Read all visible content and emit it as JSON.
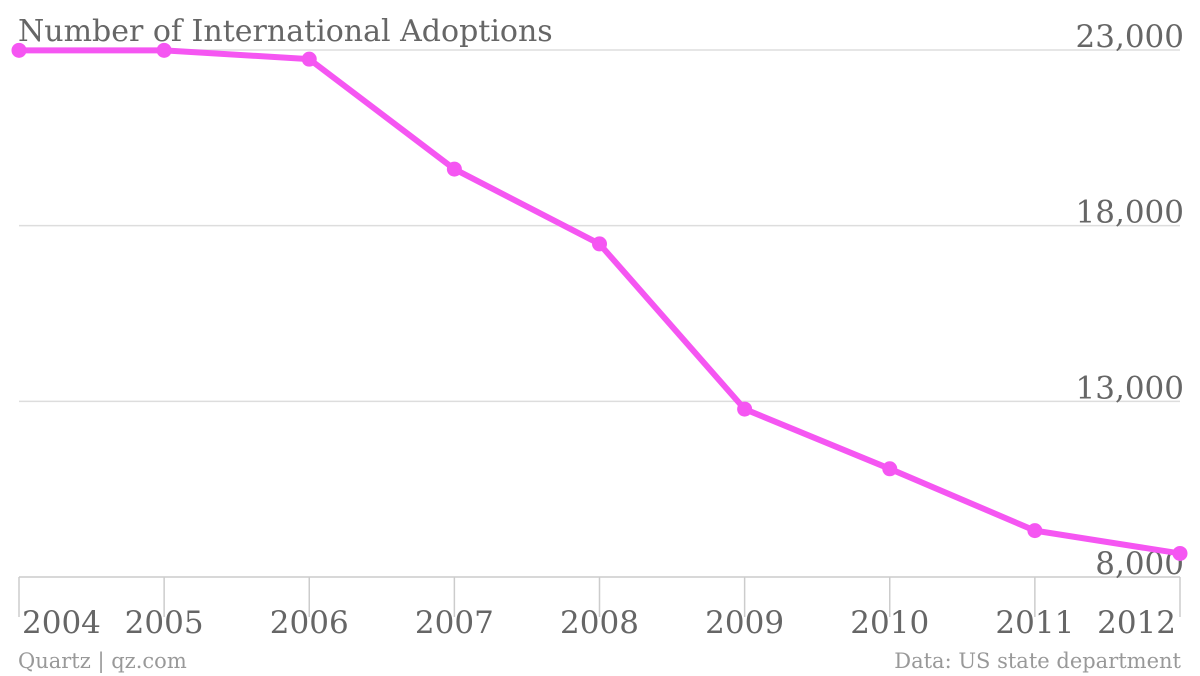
{
  "chart_data": {
    "type": "line",
    "title": "Number of International Adoptions",
    "x": [
      "2004",
      "2005",
      "2006",
      "2007",
      "2008",
      "2009",
      "2010",
      "2011",
      "2012"
    ],
    "series": [
      {
        "values": [
          22990,
          22990,
          22740,
          19610,
          17480,
          12780,
          11080,
          9320,
          8670
        ]
      }
    ],
    "yticks": [
      8000,
      13000,
      18000,
      23000
    ],
    "ytick_labels": [
      "8,000",
      "13,000",
      "18,000",
      "23,000"
    ],
    "ylim": [
      8000,
      23000
    ],
    "grid": true,
    "y_axis_side": "right",
    "legend": "none",
    "line_color": "#f556f2"
  },
  "footer": {
    "source_left": "Quartz | qz.com",
    "source_right": "Data: US state department"
  }
}
